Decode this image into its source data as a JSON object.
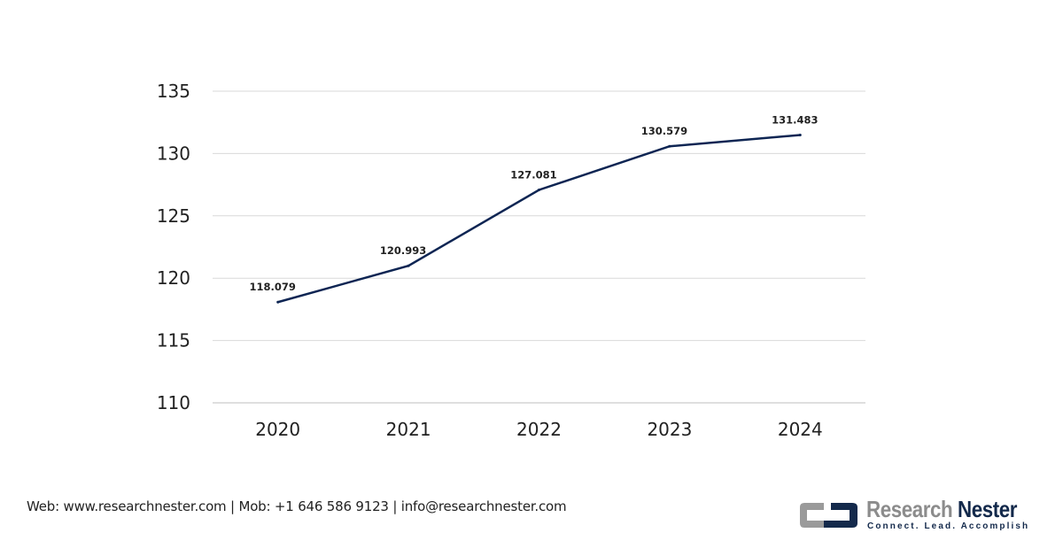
{
  "chart_data": {
    "type": "line",
    "categories": [
      "2020",
      "2021",
      "2022",
      "2023",
      "2024"
    ],
    "values": [
      118.079,
      120.993,
      127.081,
      130.579,
      131.483
    ],
    "data_labels": [
      "118.079",
      "120.993",
      "127.081",
      "130.579",
      "131.483"
    ],
    "ylim": [
      110,
      135
    ],
    "yticks": [
      "110",
      "115",
      "120",
      "125",
      "130",
      "135"
    ],
    "grid": true,
    "line_color": "#0e2553",
    "title": "",
    "xlabel": "",
    "ylabel": ""
  },
  "footer": {
    "text": "Web: www.researchnester.com  | Mob: +1 646 586 9123 | info@researchnester.com"
  },
  "logo": {
    "name_part1": "Research",
    "name_part2": "Nester",
    "tagline": "Connect. Lead. Accomplish"
  }
}
